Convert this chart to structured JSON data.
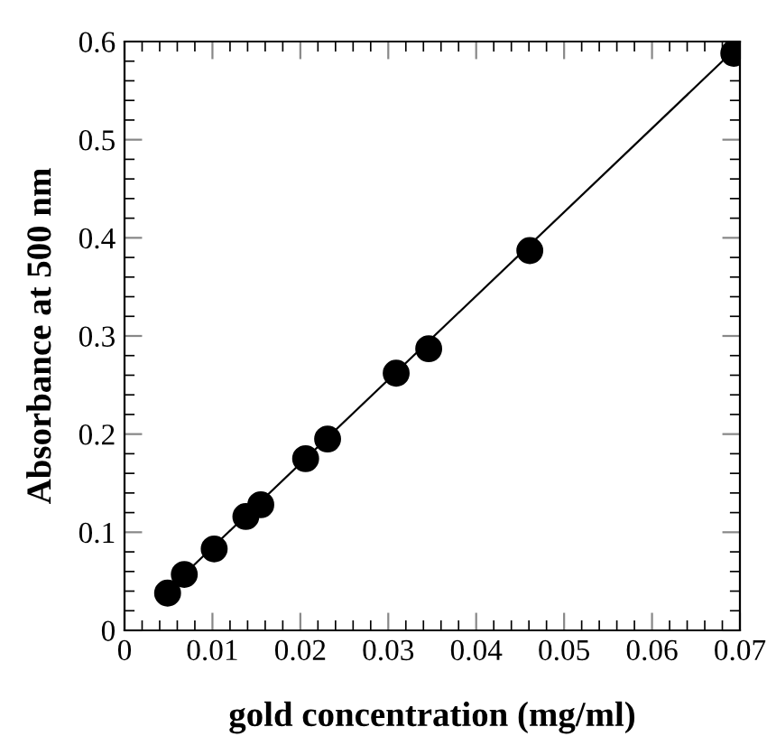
{
  "chart_data": {
    "type": "scatter",
    "xlabel": "gold concentration (mg/ml)",
    "ylabel": "Absorbance at 500 nm",
    "series": [
      {
        "color": "#000000",
        "marker": "circle",
        "x": [
          0.0049,
          0.0068,
          0.0102,
          0.0138,
          0.0155,
          0.0206,
          0.0231,
          0.0309,
          0.0346,
          0.0461,
          0.0693
        ],
        "values": [
          0.038,
          0.057,
          0.083,
          0.116,
          0.128,
          0.175,
          0.195,
          0.262,
          0.287,
          0.387,
          0.588
        ]
      },
      {
        "type": "line",
        "color": "#000000",
        "x": [
          0.0049,
          0.0693
        ],
        "values": [
          0.041,
          0.591
        ]
      }
    ],
    "xlim": [
      0,
      0.07
    ],
    "ylim": [
      0,
      0.6
    ],
    "xticks": [
      0,
      0.01,
      0.02,
      0.03,
      0.04,
      0.05,
      0.06,
      0.07
    ],
    "yticks": [
      0,
      0.1,
      0.2,
      0.3,
      0.4,
      0.5,
      0.6
    ],
    "grid": false,
    "legend": false
  }
}
